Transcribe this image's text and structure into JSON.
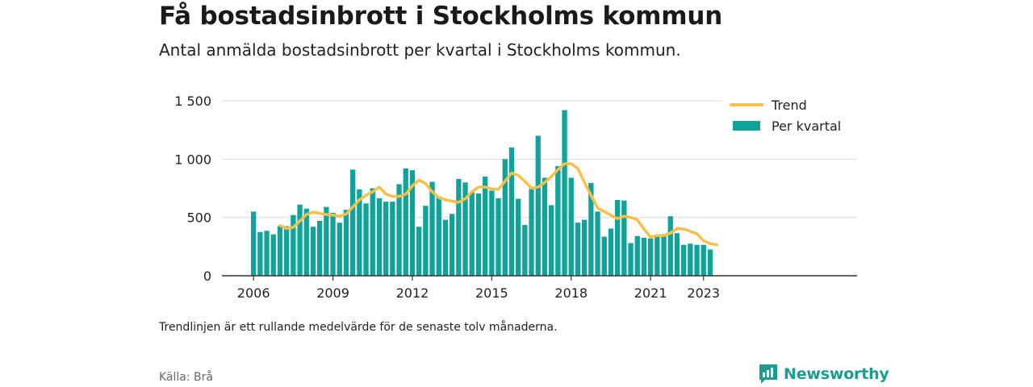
{
  "header": {
    "title": "Få bostadsinbrott i Stockholms kommun",
    "subtitle": "Antal anmälda bostadsinbrott per kvartal i Stockholms kommun."
  },
  "footer": {
    "note": "Trendlinjen är ett rullande medelvärde för de senaste tolv månaderna.",
    "source": "Källa: Brå",
    "brand": "Newsworthy",
    "brand_icon": "bar-chart-logo-icon"
  },
  "colors": {
    "bars": "#0fa39b",
    "trend": "#f7c04a",
    "axis": "#333333",
    "grid": "#d9d9d9",
    "brand": "#1b9c93"
  },
  "chart_data": {
    "type": "bar",
    "x_start": "2006-Q1",
    "x_ticks": [
      "2006",
      "2009",
      "2012",
      "2015",
      "2018",
      "2021",
      "2023"
    ],
    "y_ticks": [
      "0",
      "500",
      "1 000",
      "1 500"
    ],
    "ylim": [
      0,
      1500
    ],
    "grid": "horizontal",
    "legend": "top-right",
    "series": [
      {
        "name": "Per kvartal",
        "type": "bar",
        "values": [
          550,
          375,
          385,
          355,
          425,
          425,
          520,
          610,
          575,
          420,
          470,
          590,
          540,
          455,
          565,
          910,
          740,
          620,
          750,
          665,
          635,
          635,
          785,
          920,
          905,
          420,
          600,
          805,
          680,
          480,
          530,
          830,
          800,
          715,
          705,
          850,
          730,
          665,
          1000,
          1100,
          660,
          435,
          745,
          1200,
          840,
          605,
          940,
          1420,
          840,
          455,
          480,
          795,
          550,
          335,
          405,
          650,
          645,
          280,
          340,
          325,
          320,
          335,
          340,
          510,
          365,
          265,
          275,
          265,
          265,
          225
        ]
      },
      {
        "name": "Trend",
        "type": "line",
        "start_index": 4,
        "values": [
          430,
          405,
          415,
          470,
          525,
          545,
          535,
          525,
          520,
          510,
          530,
          590,
          650,
          690,
          720,
          760,
          700,
          680,
          680,
          700,
          770,
          820,
          790,
          720,
          670,
          650,
          640,
          630,
          660,
          720,
          760,
          760,
          745,
          740,
          810,
          880,
          860,
          810,
          750,
          760,
          800,
          850,
          910,
          960,
          960,
          920,
          800,
          690,
          580,
          550,
          520,
          490,
          510,
          500,
          480,
          400,
          330,
          345,
          345,
          365,
          405,
          400,
          380,
          360,
          300,
          275,
          265
        ]
      }
    ]
  }
}
